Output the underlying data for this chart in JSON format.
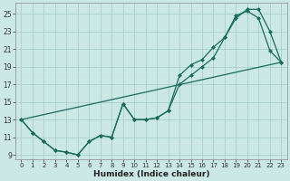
{
  "xlabel": "Humidex (Indice chaleur)",
  "bg_color": "#cce8e4",
  "grid_color": "#aacfcc",
  "line_color": "#1a6b5e",
  "xlim": [
    -0.5,
    23.5
  ],
  "ylim": [
    8.5,
    26.2
  ],
  "xticks": [
    0,
    1,
    2,
    3,
    4,
    5,
    6,
    7,
    8,
    9,
    10,
    11,
    12,
    13,
    14,
    15,
    16,
    17,
    18,
    19,
    20,
    21,
    22,
    23
  ],
  "yticks": [
    9,
    11,
    13,
    15,
    17,
    19,
    21,
    23,
    25
  ],
  "line1_x": [
    0,
    1,
    2,
    3,
    4,
    5,
    6,
    7,
    8,
    9,
    10,
    11,
    12,
    13,
    14,
    15,
    16,
    17,
    18,
    19,
    20,
    21,
    22,
    23
  ],
  "line1_y": [
    13,
    11.5,
    10.5,
    9.5,
    9.3,
    9.0,
    10.5,
    11.2,
    11.0,
    14.8,
    13.0,
    13.0,
    13.2,
    14.0,
    18.0,
    19.2,
    19.8,
    21.2,
    22.3,
    24.5,
    25.5,
    25.5,
    23.0,
    19.5
  ],
  "line2_x": [
    0,
    1,
    2,
    3,
    4,
    5,
    6,
    7,
    8,
    9,
    10,
    11,
    12,
    13,
    14,
    15,
    16,
    17,
    18,
    19,
    20,
    21,
    22,
    23
  ],
  "line2_y": [
    13,
    11.5,
    10.5,
    9.5,
    9.3,
    9.0,
    10.5,
    11.2,
    11.0,
    14.8,
    13.0,
    13.0,
    13.2,
    14.0,
    17.0,
    18.0,
    19.0,
    20.0,
    22.3,
    24.8,
    25.3,
    24.5,
    20.8,
    19.5
  ],
  "line3_x": [
    0,
    23
  ],
  "line3_y": [
    13.0,
    19.5
  ]
}
